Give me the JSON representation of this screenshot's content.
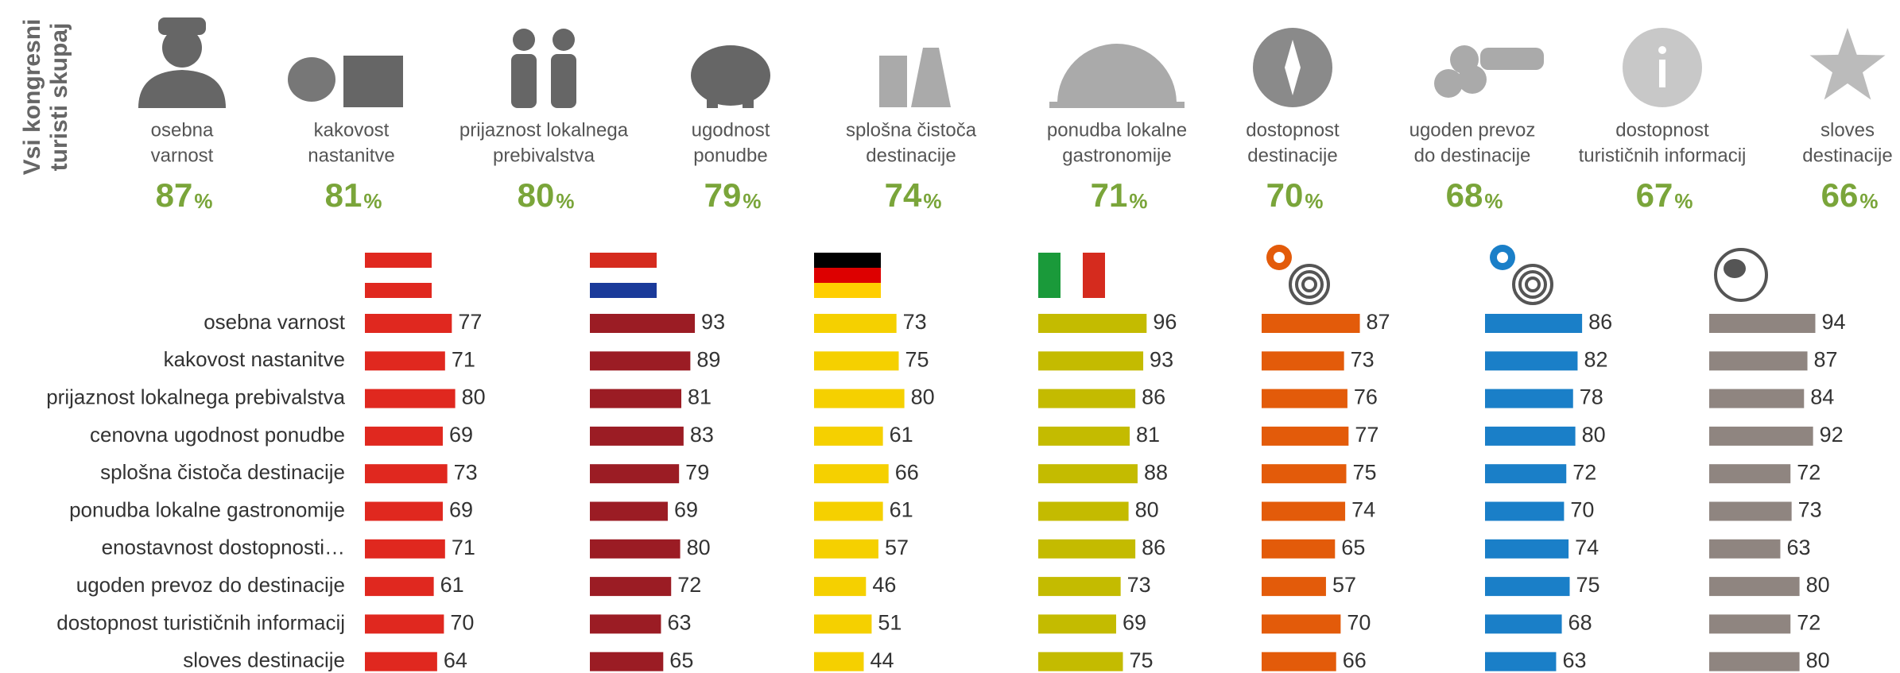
{
  "title": [
    "Vsi kongresni",
    "turisti skupaj"
  ],
  "summary": {
    "unit": "%",
    "items": [
      {
        "label": [
          "osebna",
          "varnost"
        ],
        "value": 87
      },
      {
        "label": [
          "kakovost",
          "nastanitve"
        ],
        "value": 81
      },
      {
        "label": [
          "prijaznost lokalnega",
          "prebivalstva"
        ],
        "value": 80
      },
      {
        "label": [
          "ugodnost",
          "ponudbe"
        ],
        "value": 79
      },
      {
        "label": [
          "splošna čistoča",
          "destinacije"
        ],
        "value": 74
      },
      {
        "label": [
          "ponudba lokalne",
          "gastronomije"
        ],
        "value": 71
      },
      {
        "label": [
          "dostopnost",
          "destinacije"
        ],
        "value": 70
      },
      {
        "label": [
          "ugoden prevoz",
          "do destinacije"
        ],
        "value": 68
      },
      {
        "label": [
          "dostopnost",
          "turističnih informacij"
        ],
        "value": 67
      },
      {
        "label": [
          "sloves",
          "destinacije"
        ],
        "value": 66
      }
    ]
  },
  "chart_data": {
    "type": "bar",
    "orientation": "horizontal",
    "categories": [
      "osebna varnost",
      "kakovost nastanitve",
      "prijaznost lokalnega prebivalstva",
      "cenovna ugodnost ponudbe",
      "splošna čistoča destinacije",
      "ponudba lokalne gastronomije",
      "enostavnost dostopnosti…",
      "ugoden prevoz do destinacije",
      "dostopnost turističnih informacij",
      "sloves destinacije"
    ],
    "series": [
      {
        "color": "#e0281f",
        "values": [
          77,
          71,
          80,
          69,
          73,
          69,
          71,
          61,
          70,
          64
        ]
      },
      {
        "color": "#9b1c24",
        "values": [
          93,
          89,
          81,
          83,
          79,
          69,
          80,
          72,
          63,
          65
        ]
      },
      {
        "color": "#f5d000",
        "values": [
          73,
          75,
          80,
          61,
          66,
          61,
          57,
          46,
          51,
          44
        ]
      },
      {
        "color": "#c4bb00",
        "values": [
          96,
          93,
          86,
          81,
          88,
          80,
          86,
          73,
          69,
          75
        ]
      },
      {
        "color": "#e35b0a",
        "values": [
          87,
          73,
          76,
          77,
          75,
          74,
          65,
          57,
          70,
          66
        ]
      },
      {
        "color": "#1a7fc8",
        "values": [
          86,
          82,
          78,
          80,
          72,
          70,
          74,
          75,
          68,
          63
        ]
      },
      {
        "color": "#8f8580",
        "values": [
          94,
          87,
          84,
          92,
          72,
          73,
          63,
          80,
          72,
          80
        ]
      }
    ]
  }
}
